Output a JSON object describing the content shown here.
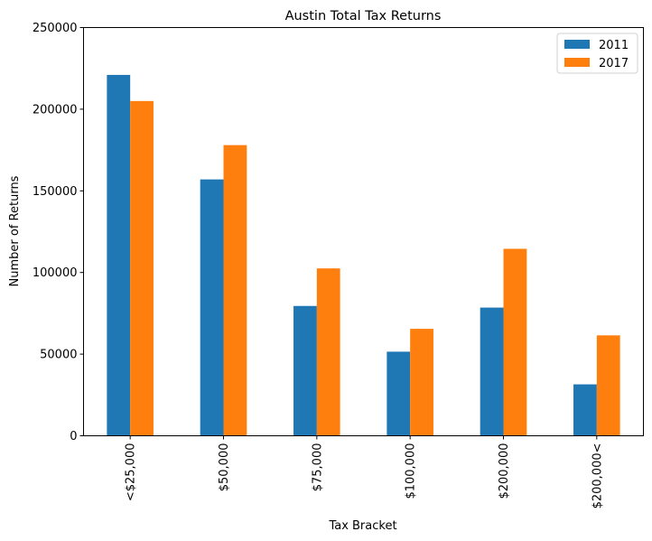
{
  "chart_data": {
    "type": "bar",
    "title": "Austin Total Tax Returns",
    "xlabel": "Tax Bracket",
    "ylabel": "Number of Returns",
    "categories": [
      "<$25,000",
      "$50,000",
      "$75,000",
      "$100,000",
      "$200,000",
      "$200,000<"
    ],
    "series": [
      {
        "name": "2011",
        "color": "#1f77b4",
        "values": [
          221000,
          157000,
          79500,
          51500,
          78500,
          31500
        ]
      },
      {
        "name": "2017",
        "color": "#ff7f0e",
        "values": [
          205000,
          178000,
          102500,
          65500,
          114500,
          61500
        ]
      }
    ],
    "ylim": [
      0,
      250000
    ],
    "yticks": [
      0,
      50000,
      100000,
      150000,
      200000,
      250000
    ],
    "ytick_labels": [
      "0",
      "50000",
      "100000",
      "150000",
      "200000",
      "250000"
    ],
    "grid": false,
    "legend_position": "top-right"
  }
}
